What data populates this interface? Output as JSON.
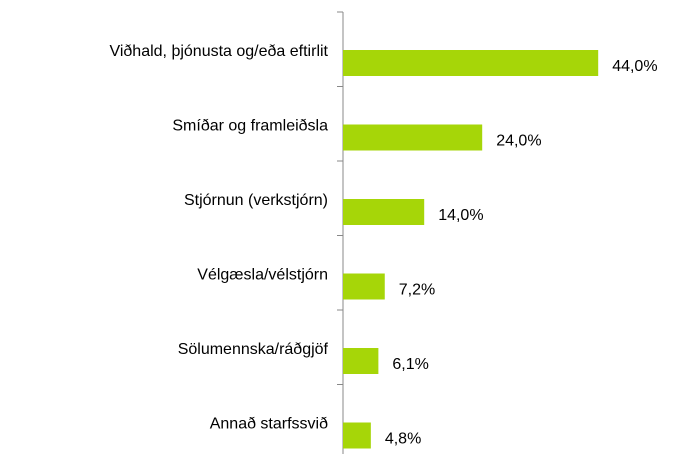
{
  "chart_data": {
    "type": "barh",
    "categories": [
      "Viðhald, þjónusta og/eða eftirlit",
      "Smíðar og framleiðsla",
      "Stjórnun (verkstjórn)",
      "Vélgæsla/vélstjórn",
      "Sölumennska/ráðgjöf",
      "Annað starfssvið"
    ],
    "values": [
      44.0,
      24.0,
      14.0,
      7.2,
      6.1,
      4.8
    ],
    "value_labels": [
      "44,0%",
      "24,0%",
      "14,0%",
      "7,2%",
      "6,1%",
      "4,8%"
    ],
    "color": "#a6d608"
  }
}
